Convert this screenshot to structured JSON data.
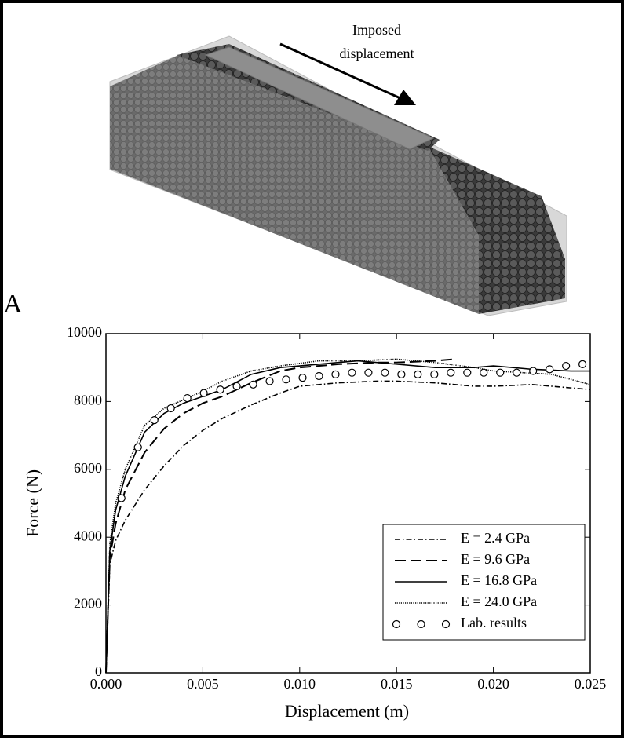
{
  "chart_data": {
    "type": "line",
    "panel_label": "A",
    "annotation": [
      "Imposed",
      "displacement"
    ],
    "x_label": "Displacement (m)",
    "y_label": "Force (N)",
    "xlim": [
      0,
      0.025
    ],
    "ylim": [
      0,
      10000
    ],
    "xticks": [
      {
        "value": 0,
        "label": "0.000"
      },
      0.005,
      {
        "value": 0.01,
        "label": "0.010"
      },
      0.015,
      {
        "value": 0.02,
        "label": "0.020"
      },
      0.025
    ],
    "yticks": [
      0,
      2000,
      4000,
      6000,
      8000,
      10000
    ],
    "legend": "lower right",
    "series": [
      {
        "name": "E = 2.4 GPa",
        "color": "#000000",
        "style": "dashdot",
        "x": [
          0,
          0.0002,
          0.0005,
          0.001,
          0.002,
          0.003,
          0.004,
          0.005,
          0.006,
          0.0075,
          0.009,
          0.01,
          0.012,
          0.014,
          0.015,
          0.017,
          0.019,
          0.02,
          0.022,
          0.024,
          0.025
        ],
        "values": [
          0,
          3200,
          3900,
          4500,
          5400,
          6100,
          6700,
          7150,
          7500,
          7900,
          8250,
          8450,
          8550,
          8600,
          8600,
          8550,
          8450,
          8450,
          8500,
          8400,
          8350
        ]
      },
      {
        "name": "E = 9.6 GPa",
        "color": "#000000",
        "style": "dashed",
        "x": [
          0,
          0.0002,
          0.0005,
          0.001,
          0.002,
          0.003,
          0.004,
          0.005,
          0.006,
          0.0075,
          0.009,
          0.01,
          0.012,
          0.014,
          0.015,
          0.017,
          0.018
        ],
        "values": [
          0,
          3400,
          4400,
          5400,
          6500,
          7200,
          7650,
          7950,
          8150,
          8550,
          8900,
          9000,
          9100,
          9150,
          9150,
          9200,
          9250
        ]
      },
      {
        "name": "E = 16.8 GPa",
        "color": "#000000",
        "style": "solid",
        "x": [
          0,
          0.0002,
          0.0005,
          0.001,
          0.002,
          0.003,
          0.004,
          0.005,
          0.006,
          0.0075,
          0.009,
          0.01,
          0.012,
          0.013,
          0.015,
          0.017,
          0.019,
          0.02,
          0.022,
          0.024,
          0.025
        ],
        "values": [
          0,
          3600,
          4800,
          5800,
          7100,
          7650,
          7950,
          8150,
          8350,
          8800,
          9000,
          9050,
          9150,
          9200,
          9100,
          9000,
          9000,
          9050,
          8950,
          8900,
          8900
        ]
      },
      {
        "name": "E = 24.0 GPa",
        "color": "#000000",
        "style": "dotted",
        "x": [
          0,
          0.0002,
          0.0005,
          0.001,
          0.002,
          0.003,
          0.004,
          0.005,
          0.006,
          0.0075,
          0.009,
          0.011,
          0.013,
          0.015,
          0.017,
          0.019,
          0.02,
          0.023,
          0.025
        ],
        "values": [
          0,
          3800,
          5000,
          6000,
          7300,
          7800,
          8050,
          8300,
          8600,
          8900,
          9050,
          9200,
          9200,
          9250,
          9150,
          9000,
          8900,
          8800,
          8500
        ]
      },
      {
        "name": "Lab. results",
        "color": "#000000",
        "style": "circle",
        "x": [
          0.0008,
          0.00165,
          0.0025,
          0.00335,
          0.0042,
          0.00505,
          0.0059,
          0.00675,
          0.0076,
          0.00845,
          0.0093,
          0.01015,
          0.011,
          0.01185,
          0.0127,
          0.01355,
          0.0144,
          0.01525,
          0.0161,
          0.01695,
          0.0178,
          0.01865,
          0.0195,
          0.02035,
          0.0212,
          0.02205,
          0.0229,
          0.02375,
          0.0246
        ],
        "values": [
          5150,
          6650,
          7450,
          7800,
          8100,
          8250,
          8350,
          8450,
          8500,
          8600,
          8650,
          8700,
          8750,
          8800,
          8850,
          8850,
          8850,
          8800,
          8800,
          8800,
          8850,
          8850,
          8850,
          8850,
          8850,
          8900,
          8950,
          9050,
          9100
        ]
      }
    ]
  }
}
